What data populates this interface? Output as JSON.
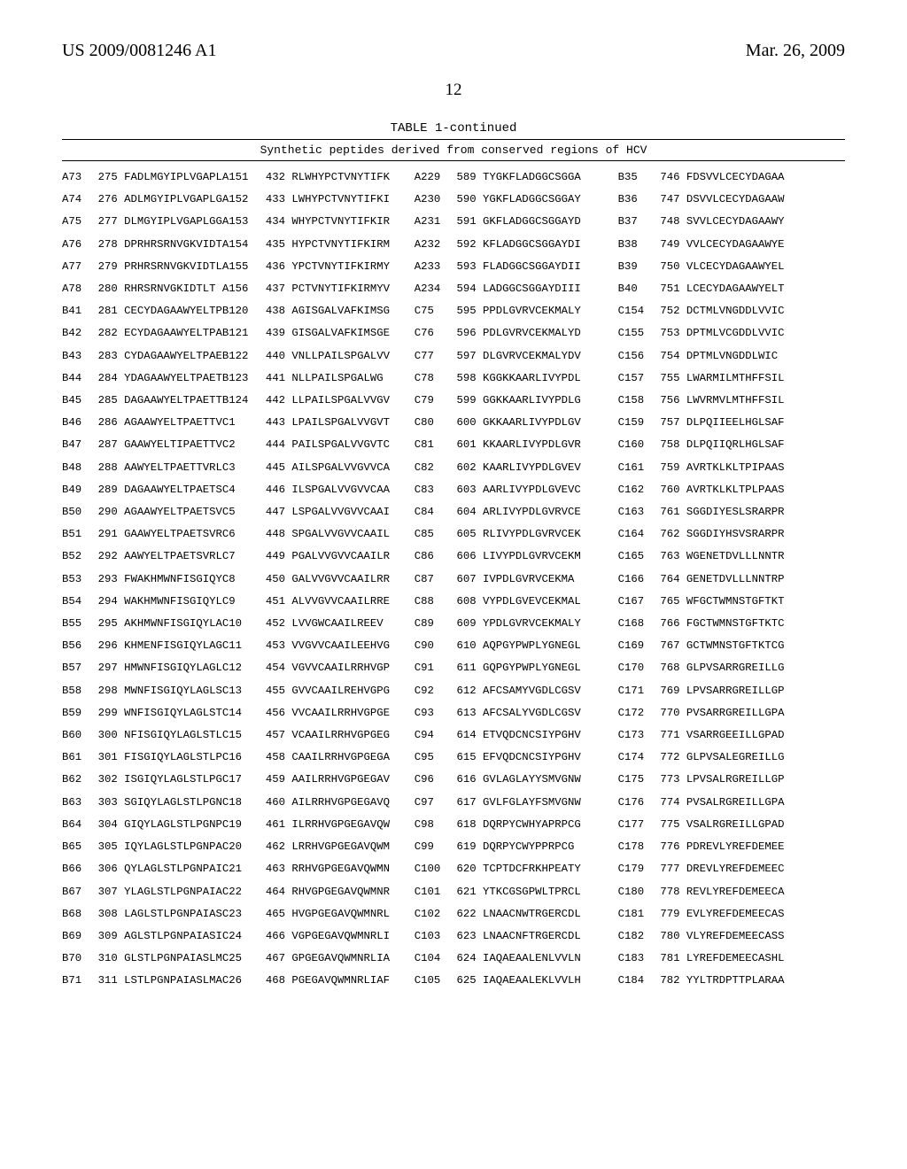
{
  "header": {
    "left": "US 2009/0081246 A1",
    "right": "Mar. 26, 2009"
  },
  "page_number": "12",
  "table_caption": "TABLE 1-continued",
  "subcaption": "Synthetic peptides derived from conserved regions of HCV",
  "rows": [
    {
      "a": "A73",
      "b": "275 FADLMGYIPLVGAPLA151",
      "c": "432 RLWHYPCTVNYTIFK",
      "d": "A229",
      "e": "589 TYGKFLADGGCSGGA",
      "f": "B35",
      "g": "746 FDSVVLCECYDAGAA"
    },
    {
      "a": "A74",
      "b": "276 ADLMGYIPLVGAPLGA152",
      "c": "433 LWHYPCTVNYTIFKI",
      "d": "A230",
      "e": "590 YGKFLADGGCSGGAY",
      "f": "B36",
      "g": "747 DSVVLCECYDAGAAW"
    },
    {
      "a": "A75",
      "b": "277 DLMGYIPLVGAPLGGA153",
      "c": "434 WHYPCTVNYTIFKIR",
      "d": "A231",
      "e": "591 GKFLADGGCSGGAYD",
      "f": "B37",
      "g": "748 SVVLCECYDAGAAWY"
    },
    {
      "a": "A76",
      "b": "278 DPRHRSRNVGKVIDTA154",
      "c": "435 HYPCTVNYTIFKIRM",
      "d": "A232",
      "e": "592 KFLADGGCSGGAYDI",
      "f": "B38",
      "g": "749 VVLCECYDAGAAWYE"
    },
    {
      "a": "A77",
      "b": "279 PRHRSRNVGKVIDTLA155",
      "c": "436 YPCTVNYTIFKIRMY",
      "d": "A233",
      "e": "593 FLADGGCSGGAYDII",
      "f": "B39",
      "g": "750 VLCECYDAGAAWYEL"
    },
    {
      "a": "A78",
      "b": "280 RHRSRNVGKIDTLT A156",
      "c": "437 PCTVNYTIFKIRMYV",
      "d": "A234",
      "e": "594 LADGGCSGGAYDIII",
      "f": "B40",
      "g": "751 LCECYDAGAAWYELT"
    },
    {
      "a": "B41",
      "b": "281 CECYDAGAAWYELTPB120",
      "c": "438 AGISGALVAFKIMSG",
      "d": "C75",
      "e": "595 PPDLGVRVCEKMALY",
      "f": "C154",
      "g": "752 DCTMLVNGDDLVVIC"
    },
    {
      "a": "B42",
      "b": "282 ECYDAGAAWYELTPAB121",
      "c": "439 GISGALVAFKIMSGE",
      "d": "C76",
      "e": "596 PDLGVRVCEKMALYD",
      "f": "C155",
      "g": "753 DPTMLVCGDDLVVIC"
    },
    {
      "a": "B43",
      "b": "283 CYDAGAAWYELTPAEB122",
      "c": "440 VNLLPAILSPGALVV",
      "d": "C77",
      "e": "597 DLGVRVCEKMALYDV",
      "f": "C156",
      "g": "754 DPTMLVNGDDLWIC"
    },
    {
      "a": "B44",
      "b": "284 YDAGAAWYELTPAETB123",
      "c": "441 NLLPAILSPGALWG",
      "d": "C78",
      "e": "598 KGGKKAARLIVYPDL",
      "f": "C157",
      "g": "755 LWARMILMTHFFSIL"
    },
    {
      "a": "B45",
      "b": "285 DAGAAWYELTPAETTB124",
      "c": "442 LLPAILSPGALVVGV",
      "d": "C79",
      "e": "599 GGKKAARLIVYPDLG",
      "f": "C158",
      "g": "756 LWVRMVLMTHFFSIL"
    },
    {
      "a": "B46",
      "b": "286 AGAAWYELTPAETTVC1",
      "c": "443 LPAILSPGALVVGVT",
      "d": "C80",
      "e": "600 GKKAARLIVYPDLGV",
      "f": "C159",
      "g": "757 DLPQIIEELHGLSAF"
    },
    {
      "a": "B47",
      "b": "287 GAAWYELTIPAETTVC2",
      "c": "444 PAILSPGALVVGVTC",
      "d": "C81",
      "e": "601 KKAARLIVYPDLGVR",
      "f": "C160",
      "g": "758 DLPQIIQRLHGLSAF"
    },
    {
      "a": "B48",
      "b": "288 AAWYELTPAETTVRLC3",
      "c": "445 AILSPGALVVGVVCA",
      "d": "C82",
      "e": "602 KAARLIVYPDLGVEV",
      "f": "C161",
      "g": "759 AVRTKLKLTPIPAAS"
    },
    {
      "a": "B49",
      "b": "289 DAGAAWYELTPAETSC4",
      "c": "446 ILSPGALVVGVVCAA",
      "d": "C83",
      "e": "603 AARLIVYPDLGVEVC",
      "f": "C162",
      "g": "760 AVRTKLKLTPLPAAS"
    },
    {
      "a": "B50",
      "b": "290 AGAAWYELTPAETSVC5",
      "c": "447 LSPGALVVGVVCAAI",
      "d": "C84",
      "e": "604 ARLIVYPDLGVRVCE",
      "f": "C163",
      "g": "761 SGGDIYESLSRARPR"
    },
    {
      "a": "B51",
      "b": "291 GAAWYELTPAETSVRC6",
      "c": "448 SPGALVVGVVCAAIL",
      "d": "C85",
      "e": "605 RLIVYPDLGVRVCEK",
      "f": "C164",
      "g": "762 SGGDIYHSVSRARPR"
    },
    {
      "a": "B52",
      "b": "292 AAWYELTPAETSVRLC7",
      "c": "449 PGALVVGVVCAAILR",
      "d": "C86",
      "e": "606 LIVYPDLGVRVCEKM",
      "f": "C165",
      "g": "763 WGENETDVLLLNNTR"
    },
    {
      "a": "B53",
      "b": "293 FWAKHMWNFISGIQYC8",
      "c": "450 GALVVGVVCAAILRR",
      "d": "C87",
      "e": "607 IVPDLGVRVCEKMA",
      "f": "C166",
      "g": "764 GENETDVLLLNNTRP"
    },
    {
      "a": "B54",
      "b": "294 WAKHMWNFISGIQYLC9",
      "c": "451 ALVVGVVCAAILRRE",
      "d": "C88",
      "e": "608 VYPDLGVEVCEKMAL",
      "f": "C167",
      "g": "765 WFGCTWMNSTGFTKT"
    },
    {
      "a": "B55",
      "b": "295 AKHMWNFISGIQYLAC10",
      "c": "452 LVVGWCAAILREEV",
      "d": "C89",
      "e": "609 YPDLGVRVCEKMALY",
      "f": "C168",
      "g": "766 FGCTWMNSTGFTKTC"
    },
    {
      "a": "B56",
      "b": "296 KHMENFISGIQYLAGC11",
      "c": "453 VVGVVCAAILEEHVG",
      "d": "C90",
      "e": "610 AQPGYPWPLYGNEGL",
      "f": "C169",
      "g": "767 GCTWMNSTGFTKTCG"
    },
    {
      "a": "B57",
      "b": "297 HMWNFISGIQYLAGLC12",
      "c": "454 VGVVCAAILRRHVGP",
      "d": "C91",
      "e": "611 GQPGYPWPLYGNEGL",
      "f": "C170",
      "g": "768 GLPVSARRGREILLG"
    },
    {
      "a": "B58",
      "b": "298 MWNFISGIQYLAGLSC13",
      "c": "455 GVVCAAILREHVGPG",
      "d": "C92",
      "e": "612 AFCSAMYVGDLCGSV",
      "f": "C171",
      "g": "769 LPVSARRGREILLGP"
    },
    {
      "a": "B59",
      "b": "299 WNFISGIQYLAGLSTC14",
      "c": "456 VVCAAILRRHVGPGE",
      "d": "C93",
      "e": "613 AFCSALYVGDLCGSV",
      "f": "C172",
      "g": "770 PVSARRGREILLGPA"
    },
    {
      "a": "B60",
      "b": "300 NFISGIQYLAGLSTLC15",
      "c": "457 VCAAILRRHVGPGEG",
      "d": "C94",
      "e": "614 ETVQDCNCSIYPGHV",
      "f": "C173",
      "g": "771 VSARRGEEILLGPAD"
    },
    {
      "a": "B61",
      "b": "301 FISGIQYLAGLSTLPC16",
      "c": "458 CAAILRRHVGPGEGA",
      "d": "C95",
      "e": "615 EFVQDCNCSIYPGHV",
      "f": "C174",
      "g": "772 GLPVSALEGREILLG"
    },
    {
      "a": "B62",
      "b": "302 ISGIQYLAGLSTLPGC17",
      "c": "459 AAILRRHVGPGEGAV",
      "d": "C96",
      "e": "616 GVLAGLAYYSMVGNW",
      "f": "C175",
      "g": "773 LPVSALRGREILLGP"
    },
    {
      "a": "B63",
      "b": "303 SGIQYLAGLSTLPGNC18",
      "c": "460 AILRRHVGPGEGAVQ",
      "d": "C97",
      "e": "617 GVLFGLAYFSMVGNW",
      "f": "C176",
      "g": "774 PVSALRGREILLGPA"
    },
    {
      "a": "B64",
      "b": "304 GIQYLAGLSTLPGNPC19",
      "c": "461 ILRRHVGPGEGAVQW",
      "d": "C98",
      "e": "618 DQRPYCWHYAPRPCG",
      "f": "C177",
      "g": "775 VSALRGREILLGPAD"
    },
    {
      "a": "B65",
      "b": "305 IQYLAGLSTLPGNPAC20",
      "c": "462 LRRHVGPGEGAVQWM",
      "d": "C99",
      "e": "619 DQRPYCWYPPRPCG",
      "f": "C178",
      "g": "776 PDREVLYREFDEMEE"
    },
    {
      "a": "B66",
      "b": "306 QYLAGLSTLPGNPAIC21",
      "c": "463 RRHVGPGEGAVQWMN",
      "d": "C100",
      "e": "620 TCPTDCFRKHPEATY",
      "f": "C179",
      "g": "777 DREVLYREFDEMEEC"
    },
    {
      "a": "B67",
      "b": "307 YLAGLSTLPGNPAIAC22",
      "c": "464 RHVGPGEGAVQWMNR",
      "d": "C101",
      "e": "621 YTKCGSGPWLTPRCL",
      "f": "C180",
      "g": "778 REVLYREFDEMEECA"
    },
    {
      "a": "B68",
      "b": "308 LAGLSTLPGNPAIASC23",
      "c": "465 HVGPGEGAVQWMNRL",
      "d": "C102",
      "e": "622 LNAACNWTRGERCDL",
      "f": "C181",
      "g": "779 EVLYREFDEMEECAS"
    },
    {
      "a": "B69",
      "b": "309 AGLSTLPGNPAIASIC24",
      "c": "466 VGPGEGAVQWMNRLI",
      "d": "C103",
      "e": "623 LNAACNFTRGERCDL",
      "f": "C182",
      "g": "780 VLYREFDEMEECASS"
    },
    {
      "a": "B70",
      "b": "310 GLSTLPGNPAIASLMC25",
      "c": "467 GPGEGAVQWMNRLIA",
      "d": "C104",
      "e": "624 IAQAEAALENLVVLN",
      "f": "C183",
      "g": "781 LYREFDEMEECASHL"
    },
    {
      "a": "B71",
      "b": "311 LSTLPGNPAIASLMAC26",
      "c": "468 PGEGAVQWMNRLIAF",
      "d": "C105",
      "e": "625 IAQAEAALEKLVVLH",
      "f": "C184",
      "g": "782 YYLTRDPTTPLARAA"
    }
  ]
}
